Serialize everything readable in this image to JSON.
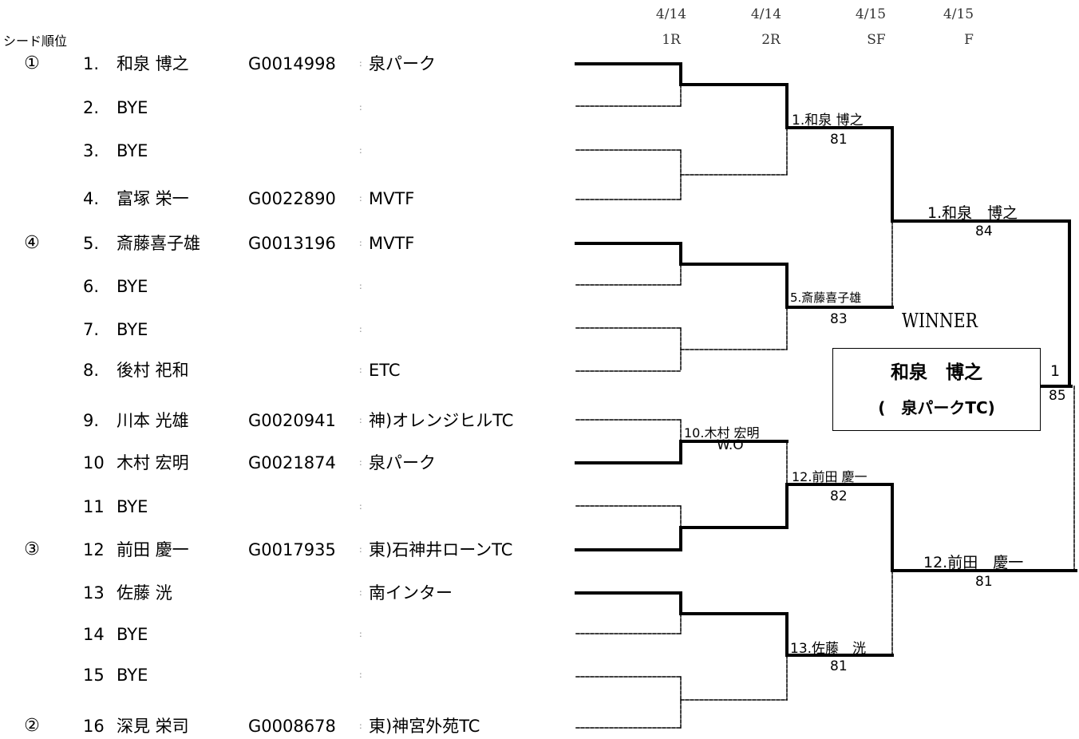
{
  "header": {
    "seed_caption": "シード順位",
    "rounds": [
      {
        "date": "4/14",
        "label": "1R"
      },
      {
        "date": "4/14",
        "label": "2R"
      },
      {
        "date": "4/15",
        "label": "SF"
      },
      {
        "date": "4/15",
        "label": "F"
      }
    ]
  },
  "players": [
    {
      "seed": "①",
      "num": "1.",
      "name": "和泉 博之",
      "license": "G0014998",
      "colon": ":",
      "club": "泉パーク"
    },
    {
      "seed": "",
      "num": "2.",
      "name": "BYE",
      "license": "",
      "colon": ":",
      "club": ""
    },
    {
      "seed": "",
      "num": "3.",
      "name": "BYE",
      "license": "",
      "colon": ":",
      "club": ""
    },
    {
      "seed": "",
      "num": "4.",
      "name": "富塚 栄一",
      "license": "G0022890",
      "colon": ":",
      "club": "MVTF"
    },
    {
      "seed": "④",
      "num": "5.",
      "name": "斎藤喜子雄",
      "license": "G0013196",
      "colon": ":",
      "club": "MVTF"
    },
    {
      "seed": "",
      "num": "6.",
      "name": "BYE",
      "license": "",
      "colon": ":",
      "club": ""
    },
    {
      "seed": "",
      "num": "7.",
      "name": "BYE",
      "license": "",
      "colon": ":",
      "club": ""
    },
    {
      "seed": "",
      "num": "8.",
      "name": "後村 祀和",
      "license": "",
      "colon": ":",
      "club": "ETC"
    },
    {
      "seed": "",
      "num": "9.",
      "name": "川本 光雄",
      "license": "G0020941",
      "colon": ":",
      "club": "神)オレンジヒルTC"
    },
    {
      "seed": "",
      "num": "10",
      "name": "木村 宏明",
      "license": "G0021874",
      "colon": ":",
      "club": "泉パーク"
    },
    {
      "seed": "",
      "num": "11",
      "name": "BYE",
      "license": "",
      "colon": ":",
      "club": ""
    },
    {
      "seed": "③",
      "num": "12",
      "name": "前田 慶一",
      "license": "G0017935",
      "colon": ":",
      "club": "東)石神井ローンTC"
    },
    {
      "seed": "",
      "num": "13",
      "name": "佐藤 洸",
      "license": "",
      "colon": ":",
      "club": "南インター"
    },
    {
      "seed": "",
      "num": "14",
      "name": "BYE",
      "license": "",
      "colon": ":",
      "club": ""
    },
    {
      "seed": "",
      "num": "15",
      "name": "BYE",
      "license": "",
      "colon": ":",
      "club": ""
    },
    {
      "seed": "②",
      "num": "16",
      "name": "深見 栄司",
      "license": "G0008678",
      "colon": ":",
      "club": "東)神宮外苑TC"
    }
  ],
  "results": {
    "r1_m5": {
      "winner": "10.木村 宏明",
      "score": "W.O"
    },
    "r2_m1": {
      "winner": "1.和泉 博之",
      "score": "81"
    },
    "r2_m2": {
      "winner": "5.斎藤喜子雄",
      "score": "83"
    },
    "r2_m3": {
      "winner": "12.前田 慶一",
      "score": "82"
    },
    "r2_m4": {
      "winner": "13.佐藤　洸",
      "score": "81"
    },
    "sf_m1": {
      "winner": "1.和泉　博之",
      "score": "84"
    },
    "sf_m2": {
      "winner": "12.前田　慶一",
      "score": "81"
    },
    "final": {
      "winner_num": "1",
      "score": "85"
    }
  },
  "winner": {
    "label": "WINNER",
    "name": "和泉　博之",
    "club": "(　泉パークTC)"
  }
}
